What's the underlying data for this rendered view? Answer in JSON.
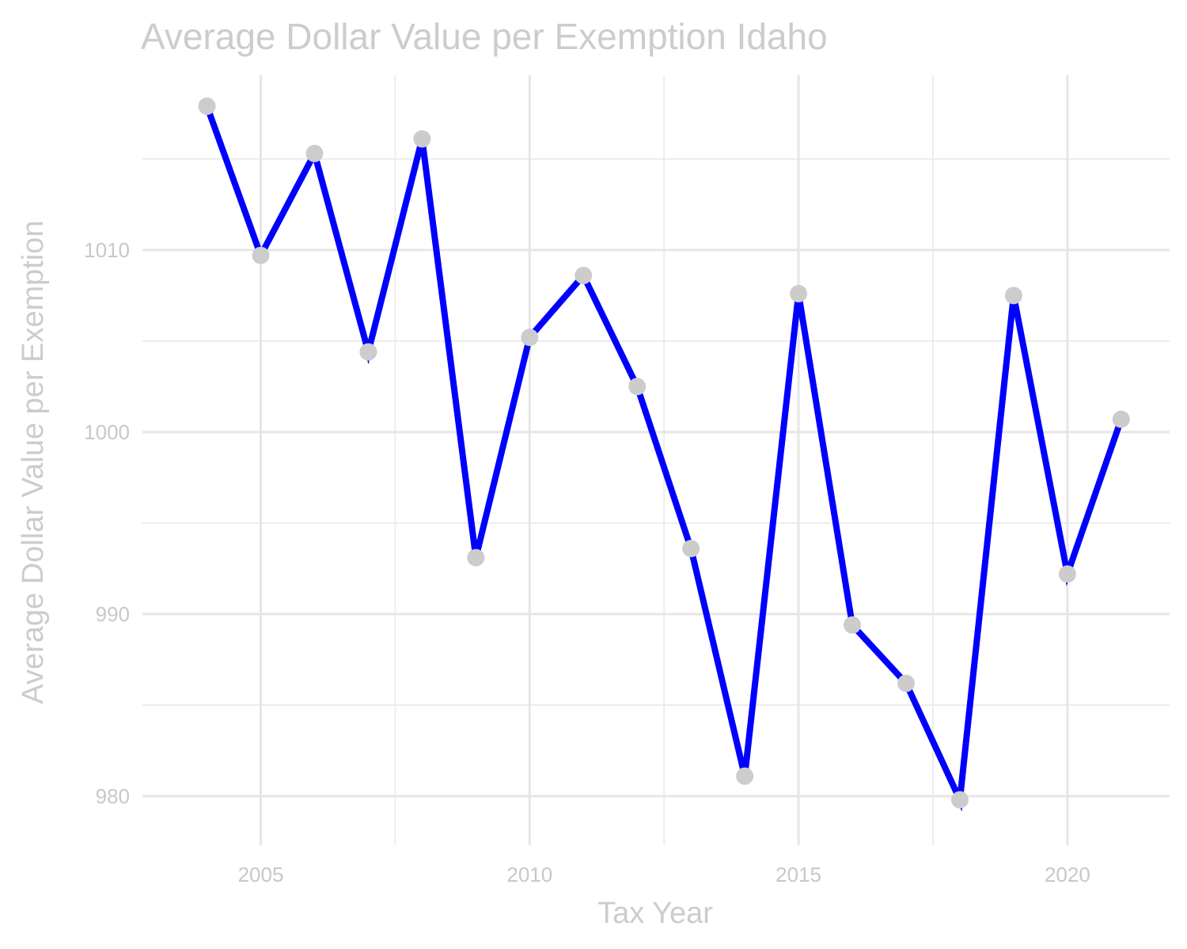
{
  "chart_data": {
    "type": "line",
    "title": "Average Dollar Value per Exemption Idaho",
    "xlabel": "Tax Year",
    "ylabel": "Average Dollar Value per Exemption",
    "x": [
      2004,
      2005,
      2006,
      2007,
      2008,
      2009,
      2010,
      2011,
      2012,
      2013,
      2014,
      2015,
      2016,
      2017,
      2018,
      2019,
      2020,
      2021
    ],
    "series": [
      {
        "values": [
          1017.9,
          1009.7,
          1015.3,
          1004.4,
          1016.1,
          993.1,
          1005.2,
          1008.6,
          1002.5,
          993.6,
          981.1,
          1007.6,
          989.4,
          986.2,
          979.8,
          1007.5,
          992.2,
          1000.7
        ]
      }
    ],
    "xlim": [
      2002.8,
      2021.9
    ],
    "ylim": [
      977.3,
      1019.6
    ],
    "x_ticks": [
      2005,
      2010,
      2015,
      2020
    ],
    "y_ticks": [
      980,
      990,
      1000,
      1010
    ],
    "grid": true,
    "colors": {
      "line": "#0000ff",
      "point": "#cccccc"
    }
  }
}
